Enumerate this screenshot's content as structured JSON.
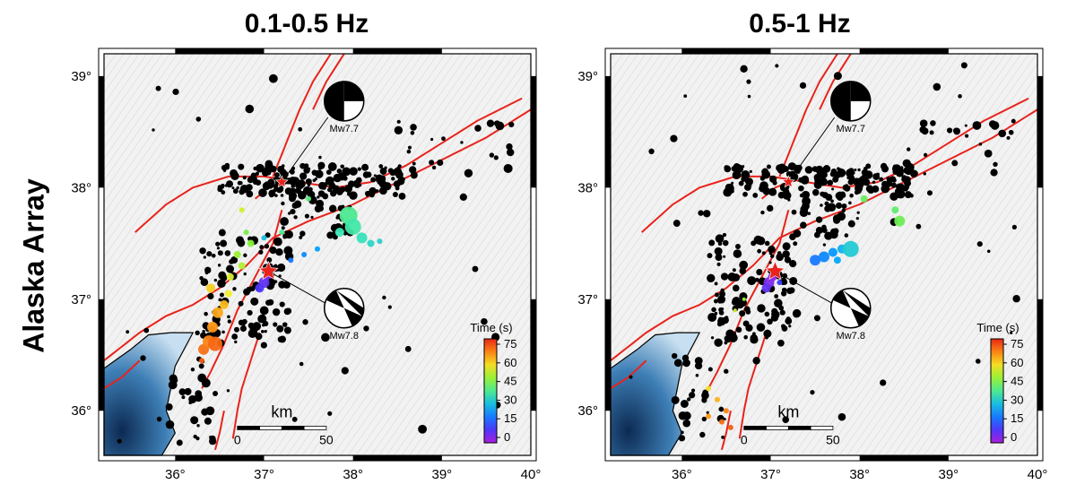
{
  "row_label": "Alaska Array",
  "colors": {
    "fault": "#e8231b",
    "epicenter": "#e8231b",
    "event": "#000000"
  },
  "panels": [
    {
      "id": "panel-low",
      "title": "0.1-0.5 Hz",
      "x_ticks": [
        "36°",
        "37°",
        "38°",
        "39°",
        "40°"
      ],
      "y_ticks": [
        "39°",
        "38°",
        "37°",
        "36°"
      ],
      "mainshocks": [
        {
          "label": "Mw7.7",
          "lon": 37.2,
          "lat": 38.05,
          "ball_lon": 37.9,
          "ball_lat": 39.0
        },
        {
          "label": "Mw7.8",
          "lon": 37.05,
          "lat": 37.25,
          "ball_lon": 37.9,
          "ball_lat": 37.0
        }
      ],
      "colorbar": {
        "title": "Time (s)",
        "ticks": [
          "75",
          "60",
          "45",
          "30",
          "15",
          "0"
        ]
      },
      "scalebar": {
        "label": "km",
        "start": "0",
        "end": "50"
      },
      "radiators": [
        {
          "lon": 36.32,
          "lat": 36.55,
          "t": 72,
          "r": 6
        },
        {
          "lon": 36.38,
          "lat": 36.62,
          "t": 70,
          "r": 7
        },
        {
          "lon": 36.45,
          "lat": 36.6,
          "t": 73,
          "r": 8
        },
        {
          "lon": 36.42,
          "lat": 36.75,
          "t": 68,
          "r": 6
        },
        {
          "lon": 36.48,
          "lat": 36.88,
          "t": 66,
          "r": 6
        },
        {
          "lon": 36.55,
          "lat": 36.95,
          "t": 64,
          "r": 5
        },
        {
          "lon": 36.4,
          "lat": 37.1,
          "t": 62,
          "r": 5
        },
        {
          "lon": 36.6,
          "lat": 37.05,
          "t": 58,
          "r": 4
        },
        {
          "lon": 36.62,
          "lat": 37.2,
          "t": 56,
          "r": 4
        },
        {
          "lon": 36.75,
          "lat": 37.3,
          "t": 52,
          "r": 4
        },
        {
          "lon": 36.7,
          "lat": 37.4,
          "t": 50,
          "r": 4
        },
        {
          "lon": 36.85,
          "lat": 37.5,
          "t": 48,
          "r": 4
        },
        {
          "lon": 36.8,
          "lat": 37.6,
          "t": 46,
          "r": 3
        },
        {
          "lon": 37.0,
          "lat": 37.15,
          "t": 8,
          "r": 6
        },
        {
          "lon": 37.05,
          "lat": 37.22,
          "t": 5,
          "r": 5
        },
        {
          "lon": 36.95,
          "lat": 37.1,
          "t": 10,
          "r": 5
        },
        {
          "lon": 37.3,
          "lat": 37.35,
          "t": 20,
          "r": 3
        },
        {
          "lon": 37.45,
          "lat": 37.4,
          "t": 22,
          "r": 3
        },
        {
          "lon": 37.6,
          "lat": 37.45,
          "t": 25,
          "r": 3
        },
        {
          "lon": 37.2,
          "lat": 37.6,
          "t": 40,
          "r": 3
        },
        {
          "lon": 37.5,
          "lat": 37.9,
          "t": 42,
          "r": 3
        },
        {
          "lon": 37.95,
          "lat": 37.75,
          "t": 40,
          "r": 10
        },
        {
          "lon": 38.0,
          "lat": 37.65,
          "t": 38,
          "r": 9
        },
        {
          "lon": 38.1,
          "lat": 37.55,
          "t": 36,
          "r": 6
        },
        {
          "lon": 38.2,
          "lat": 37.5,
          "t": 34,
          "r": 4
        },
        {
          "lon": 38.3,
          "lat": 37.52,
          "t": 33,
          "r": 3
        },
        {
          "lon": 37.85,
          "lat": 37.6,
          "t": 37,
          "r": 5
        },
        {
          "lon": 36.3,
          "lat": 36.45,
          "t": 74,
          "r": 3
        },
        {
          "lon": 36.75,
          "lat": 37.8,
          "t": 55,
          "r": 3
        },
        {
          "lon": 37.0,
          "lat": 37.55,
          "t": 30,
          "r": 3
        }
      ]
    },
    {
      "id": "panel-high",
      "title": "0.5-1 Hz",
      "x_ticks": [
        "36°",
        "37°",
        "38°",
        "39°",
        "40°"
      ],
      "y_ticks": [
        "39°",
        "38°",
        "37°",
        "36°"
      ],
      "mainshocks": [
        {
          "label": "Mw7.7",
          "lon": 37.2,
          "lat": 38.05,
          "ball_lon": 37.9,
          "ball_lat": 39.0
        },
        {
          "label": "Mw7.8",
          "lon": 37.05,
          "lat": 37.25,
          "ball_lon": 37.9,
          "ball_lat": 37.0
        }
      ],
      "colorbar": {
        "title": "Time (s)",
        "ticks": [
          "75",
          "60",
          "45",
          "30",
          "15",
          "0"
        ]
      },
      "scalebar": {
        "label": "km",
        "start": "0",
        "end": "50"
      },
      "radiators": [
        {
          "lon": 36.98,
          "lat": 37.15,
          "t": 5,
          "r": 6
        },
        {
          "lon": 37.02,
          "lat": 37.2,
          "t": 3,
          "r": 5
        },
        {
          "lon": 36.95,
          "lat": 37.1,
          "t": 8,
          "r": 5
        },
        {
          "lon": 37.1,
          "lat": 37.15,
          "t": 12,
          "r": 3
        },
        {
          "lon": 37.5,
          "lat": 37.35,
          "t": 20,
          "r": 6
        },
        {
          "lon": 37.6,
          "lat": 37.38,
          "t": 22,
          "r": 6
        },
        {
          "lon": 37.7,
          "lat": 37.42,
          "t": 24,
          "r": 5
        },
        {
          "lon": 37.8,
          "lat": 37.45,
          "t": 28,
          "r": 5
        },
        {
          "lon": 37.9,
          "lat": 37.45,
          "t": 32,
          "r": 9
        },
        {
          "lon": 37.75,
          "lat": 37.35,
          "t": 26,
          "r": 4
        },
        {
          "lon": 38.45,
          "lat": 37.7,
          "t": 45,
          "r": 6
        },
        {
          "lon": 38.4,
          "lat": 37.8,
          "t": 43,
          "r": 4
        },
        {
          "lon": 38.05,
          "lat": 37.9,
          "t": 44,
          "r": 4
        },
        {
          "lon": 36.3,
          "lat": 36.2,
          "t": 60,
          "r": 3
        },
        {
          "lon": 36.4,
          "lat": 36.1,
          "t": 65,
          "r": 3
        },
        {
          "lon": 36.5,
          "lat": 36.0,
          "t": 70,
          "r": 3
        },
        {
          "lon": 36.45,
          "lat": 35.9,
          "t": 72,
          "r": 3
        },
        {
          "lon": 36.55,
          "lat": 35.85,
          "t": 74,
          "r": 3
        },
        {
          "lon": 36.3,
          "lat": 35.95,
          "t": 68,
          "r": 3
        },
        {
          "lon": 36.6,
          "lat": 36.9,
          "t": 55,
          "r": 2
        },
        {
          "lon": 36.7,
          "lat": 37.0,
          "t": 50,
          "r": 2
        }
      ]
    }
  ]
}
